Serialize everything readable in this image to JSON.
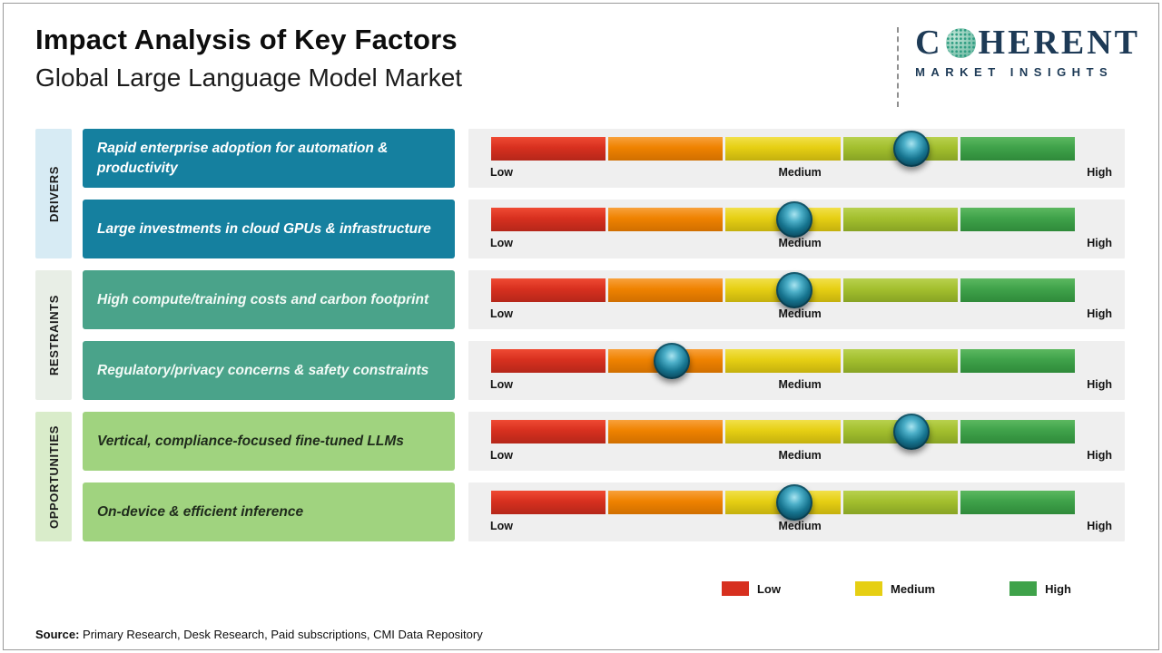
{
  "header": {
    "title": "Impact Analysis of Key Factors",
    "subtitle": "Global Large Language Model Market"
  },
  "logo": {
    "name_first": "C",
    "name_rest": "HERENT",
    "tagline": "MARKET INSIGHTS"
  },
  "categories": [
    {
      "id": "drivers",
      "label": "DRIVERS"
    },
    {
      "id": "restraints",
      "label": "RESTRAINTS"
    },
    {
      "id": "opportunities",
      "label": "OPPORTUNITIES"
    }
  ],
  "rows": [
    {
      "group": "drivers",
      "factor": "Rapid enterprise adoption for automation & productivity",
      "impact_pct": 72
    },
    {
      "group": "drivers",
      "factor": "Large investments in cloud GPUs & infrastructure",
      "impact_pct": 52
    },
    {
      "group": "restraints",
      "factor": "High compute/training costs and carbon footprint",
      "impact_pct": 52
    },
    {
      "group": "restraints",
      "factor": "Regulatory/privacy concerns & safety constraints",
      "impact_pct": 31
    },
    {
      "group": "opportunities",
      "factor": "Vertical, compliance-focused fine-tuned LLMs",
      "impact_pct": 72
    },
    {
      "group": "opportunities",
      "factor": "On-device & efficient inference",
      "impact_pct": 52
    }
  ],
  "scale": {
    "low": "Low",
    "medium": "Medium",
    "high": "High"
  },
  "legend": [
    {
      "label": "Low",
      "color": "#d7301f"
    },
    {
      "label": "Medium",
      "color": "#e6cf13"
    },
    {
      "label": "High",
      "color": "#3fa24a"
    }
  ],
  "source": {
    "label": "Source:",
    "text": " Primary Research, Desk Research, Paid subscriptions, CMI Data Repository"
  },
  "chart_data": {
    "type": "table",
    "title": "Impact Analysis of Key Factors",
    "subtitle": "Global Large Language Model Market",
    "scale_labels": [
      "Low",
      "Medium",
      "High"
    ],
    "segment_colors": [
      "#d7301f",
      "#ef8200",
      "#e6cf13",
      "#a3bf2e",
      "#3fa24a"
    ],
    "legend": [
      "Low",
      "Medium",
      "High"
    ],
    "rows": [
      {
        "category": "Drivers",
        "factor": "Rapid enterprise adoption for automation & productivity",
        "impact_position_pct": 72,
        "impact_level": "Medium-High"
      },
      {
        "category": "Drivers",
        "factor": "Large investments in cloud GPUs & infrastructure",
        "impact_position_pct": 52,
        "impact_level": "Medium"
      },
      {
        "category": "Restraints",
        "factor": "High compute/training costs and carbon footprint",
        "impact_position_pct": 52,
        "impact_level": "Medium"
      },
      {
        "category": "Restraints",
        "factor": "Regulatory/privacy concerns & safety constraints",
        "impact_position_pct": 31,
        "impact_level": "Low-Medium"
      },
      {
        "category": "Opportunities",
        "factor": "Vertical, compliance-focused fine-tuned LLMs",
        "impact_position_pct": 72,
        "impact_level": "Medium-High"
      },
      {
        "category": "Opportunities",
        "factor": "On-device & efficient inference",
        "impact_position_pct": 52,
        "impact_level": "Medium"
      }
    ]
  }
}
